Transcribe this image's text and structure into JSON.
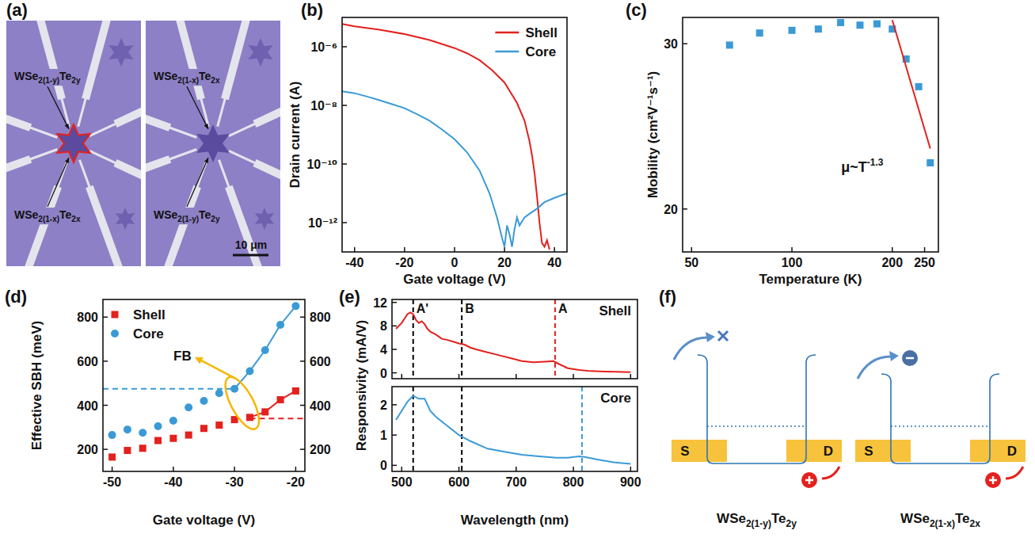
{
  "panel_a": {
    "panel_label": "(a)",
    "images": [
      {
        "labels": [
          "WSe2(1-y)Te2y",
          "WSe2(1-x)Te2x"
        ]
      },
      {
        "labels": [
          "WSe2(1-x)Te2x",
          "WSe2(1-y)Te2y"
        ]
      }
    ],
    "scale_bar": "10 μm"
  },
  "chart_data": [
    {
      "panel_label": "(b)",
      "type": "line",
      "log": "y",
      "x_label": "Gate voltage (V)",
      "y_label": "Drain current (A)",
      "xlim": [
        -45,
        45
      ],
      "xticks": [
        -40,
        -20,
        0,
        20,
        40
      ],
      "ylim": [
        1e-13,
        1e-05
      ],
      "yticks": [
        {
          "value": 1e-06,
          "label": "10⁻⁶"
        },
        {
          "value": 1e-08,
          "label": "10⁻⁸"
        },
        {
          "value": 1e-10,
          "label": "10⁻¹⁰"
        },
        {
          "value": 1e-12,
          "label": "10⁻¹²"
        }
      ],
      "legend": "upper right",
      "series": [
        {
          "name": "Shell",
          "color": "#e3211e",
          "x": [
            -45,
            -40,
            -30,
            -20,
            -10,
            0,
            5,
            10,
            15,
            20,
            25,
            28,
            30,
            31,
            32,
            33,
            34,
            35,
            36,
            37,
            38
          ],
          "values": [
            6e-06,
            5e-06,
            3.8e-06,
            2.7e-06,
            1.7e-06,
            9e-07,
            6e-07,
            3.5e-07,
            1.6e-07,
            6e-08,
            1.2e-08,
            3e-09,
            6e-10,
            2e-10,
            5e-11,
            8e-12,
            1e-12,
            2e-13,
            1.5e-13,
            2.5e-13,
            1.2e-13
          ]
        },
        {
          "name": "Core",
          "color": "#3b9ad6",
          "x": [
            -45,
            -40,
            -35,
            -30,
            -25,
            -20,
            -15,
            -10,
            -5,
            0,
            5,
            10,
            14,
            17,
            19,
            20,
            21,
            22,
            23,
            24,
            25,
            26,
            28,
            30,
            33,
            36,
            40,
            45
          ],
          "values": [
            3e-08,
            2.6e-08,
            2e-08,
            1.5e-08,
            1.1e-08,
            8e-09,
            5e-09,
            3e-09,
            1.5e-09,
            7e-10,
            2.5e-10,
            6e-11,
            1e-11,
            1.5e-12,
            3e-13,
            1.5e-13,
            8e-13,
            4e-13,
            1.5e-13,
            6e-13,
            1.5e-12,
            8e-13,
            1.5e-12,
            2e-12,
            3e-12,
            5e-12,
            7e-12,
            1e-11
          ]
        }
      ]
    },
    {
      "panel_label": "(c)",
      "type": "scatter",
      "log": true,
      "x_label": "Temperature (K)",
      "y_label": "Mobility (cm²V⁻¹s⁻¹)",
      "xlim": [
        47,
        275
      ],
      "xticks": [
        50,
        100,
        200,
        250
      ],
      "ylim": [
        18,
        32
      ],
      "yticks": [
        20,
        30
      ],
      "x": [
        65,
        80,
        100,
        120,
        140,
        160,
        180,
        200,
        220,
        240,
        260
      ],
      "series": [
        {
          "color": "#3b9ad6",
          "marker": "square",
          "values": [
            29.9,
            30.8,
            31,
            31.1,
            31.6,
            31.4,
            31.5,
            31.1,
            28.9,
            27,
            22.4
          ]
        },
        {
          "type": "line",
          "color": "#e3211e",
          "x": [
            200,
            260
          ],
          "values": [
            31.8,
            23.2
          ]
        }
      ],
      "annotations": [
        {
          "text": "μ~T",
          "sup": "-1.3"
        }
      ]
    },
    {
      "panel_label": "(d)",
      "type": "scatter",
      "x_label": "Gate voltage (V)",
      "y_label": "Effective SBH (meV)",
      "xlim": [
        -51.5,
        -18.5
      ],
      "xticks": [
        -50,
        -40,
        -30,
        -20
      ],
      "ylim": [
        100,
        880
      ],
      "yticks": [
        200,
        400,
        600,
        800
      ],
      "y2lim": [
        100,
        880
      ],
      "y2ticks": [
        200,
        400,
        600,
        800
      ],
      "legend": "upper left",
      "x": [
        -50,
        -47.5,
        -45,
        -42.5,
        -40,
        -37.5,
        -35,
        -32.5,
        -30,
        -27.5,
        -25,
        -22.5,
        -20
      ],
      "series": [
        {
          "name": "Shell",
          "color": "#e3211e",
          "marker": "square",
          "values": [
            165,
            195,
            205,
            240,
            250,
            265,
            295,
            310,
            335,
            345,
            370,
            425,
            465
          ]
        },
        {
          "name": "Core",
          "color": "#3b9ad6",
          "marker": "circle",
          "values": [
            265,
            290,
            275,
            305,
            330,
            390,
            420,
            455,
            475,
            555,
            650,
            765,
            850
          ]
        },
        {
          "type": "line",
          "color": "#3b9ad6",
          "x": [
            -30,
            -27.5,
            -25,
            -22.5,
            -20
          ],
          "values": [
            475,
            555,
            650,
            765,
            850
          ]
        },
        {
          "type": "line",
          "color": "#e3211e",
          "x": [
            -27.5,
            -25,
            -22.5,
            -20
          ],
          "values": [
            345,
            370,
            425,
            465
          ]
        },
        {
          "type": "line",
          "line_style": "dashed",
          "color": "#3b9ad6",
          "x": [
            -51.5,
            -30
          ],
          "values": [
            475,
            475
          ]
        },
        {
          "type": "line",
          "line_style": "dashed",
          "color": "#e3211e",
          "x": [
            -27.5,
            -18.5
          ],
          "values": [
            340,
            340
          ]
        }
      ],
      "annotations": [
        {
          "text": "FB"
        }
      ]
    },
    {
      "panel_label": "(e)",
      "type": "line",
      "title": "Shell",
      "y_label": "Responsivity (mA/V)",
      "tick_labels": "y",
      "xlim": [
        483,
        912
      ],
      "xticks": [
        500,
        600,
        700,
        800,
        900
      ],
      "ylim": [
        -1,
        12.5
      ],
      "yticks": [
        0,
        4,
        8,
        12
      ],
      "x": [
        490,
        500,
        510,
        515,
        520,
        525,
        530,
        535,
        540,
        545,
        550,
        560,
        570,
        580,
        590,
        600,
        610,
        620,
        630,
        650,
        670,
        690,
        710,
        730,
        750,
        765,
        775,
        790,
        810,
        830,
        860,
        900
      ],
      "series": [
        {
          "color": "#e3211e",
          "values": [
            7.5,
            8.5,
            10,
            10.3,
            10,
            9,
            8.5,
            8.8,
            8.3,
            7.5,
            7,
            6.5,
            5.8,
            5.6,
            5.3,
            5,
            4.8,
            4.3,
            4,
            3.5,
            3,
            2.5,
            2,
            1.8,
            1.9,
            2,
            1.5,
            0.8,
            0.5,
            0.3,
            0.2,
            0.1
          ]
        }
      ],
      "vlines": [
        {
          "x": 520,
          "label": "A'",
          "color": "#000000",
          "line_style": "dashed"
        },
        {
          "x": 605,
          "label": "B",
          "color": "#000000",
          "line_style": "dashed"
        },
        {
          "x": 768,
          "label": "A",
          "color": "#e3211e",
          "line_style": "dashed"
        }
      ]
    },
    {
      "type": "line",
      "title": "Core",
      "x_label": "Wavelength (nm)",
      "xlim": [
        483,
        912
      ],
      "xticks": [
        500,
        600,
        700,
        800,
        900
      ],
      "ylim": [
        -0.2,
        2.6
      ],
      "yticks": [
        0,
        1,
        2
      ],
      "x": [
        490,
        500,
        510,
        520,
        530,
        540,
        550,
        560,
        580,
        600,
        620,
        650,
        680,
        710,
        740,
        770,
        790,
        810,
        820,
        840,
        870,
        900
      ],
      "series": [
        {
          "color": "#3b9ad6",
          "values": [
            1.5,
            1.8,
            2.1,
            2.3,
            2.2,
            2.2,
            1.8,
            1.6,
            1.3,
            1.0,
            0.8,
            0.55,
            0.45,
            0.35,
            0.3,
            0.25,
            0.25,
            0.3,
            0.28,
            0.2,
            0.1,
            0.05
          ]
        }
      ],
      "vlines": [
        {
          "x": 520,
          "color": "#000000",
          "line_style": "dashed"
        },
        {
          "x": 605,
          "color": "#000000",
          "line_style": "dashed"
        },
        {
          "x": 815,
          "color": "#3b9ad6",
          "line_style": "dashed"
        }
      ]
    }
  ],
  "panel_f": {
    "panel_label": "(f)",
    "diagrams": [
      {
        "caption": "WSe2(1-y)Te2y",
        "source": "S",
        "drain": "D"
      },
      {
        "caption": "WSe2(1-x)Te2x",
        "source": "S",
        "drain": "D"
      }
    ]
  }
}
